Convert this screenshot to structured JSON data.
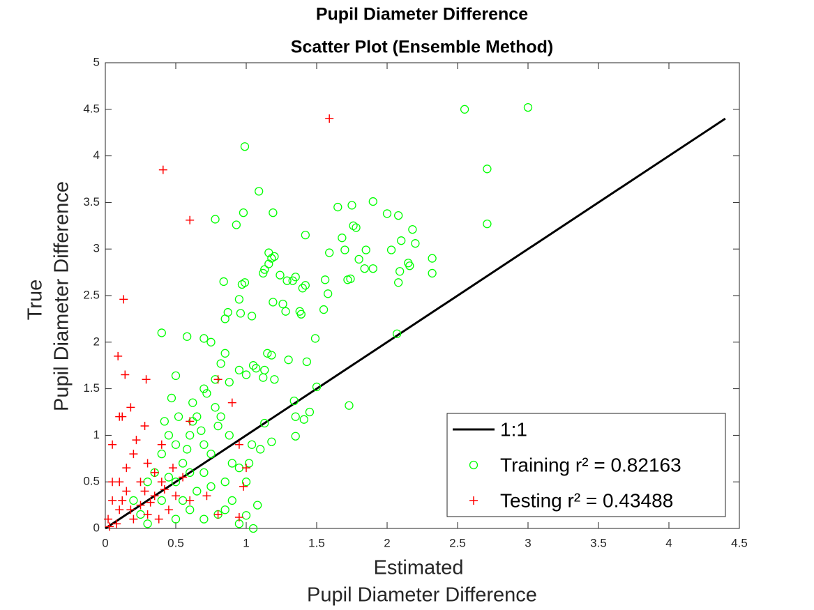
{
  "chart_data": {
    "type": "scatter",
    "title": [
      "Pupil Diameter Difference",
      "Scatter Plot (Ensemble Method)"
    ],
    "xlabel": [
      "Estimated",
      "Pupil Diameter Difference"
    ],
    "ylabel": [
      "True",
      "Pupil Diameter Difference"
    ],
    "xlim": [
      0,
      4.5
    ],
    "ylim": [
      0,
      5
    ],
    "xticks": [
      0,
      0.5,
      1,
      1.5,
      2,
      2.5,
      3,
      3.5,
      4,
      4.5
    ],
    "yticks": [
      0,
      0.5,
      1,
      1.5,
      2,
      2.5,
      3,
      3.5,
      4,
      4.5,
      5
    ],
    "grid": false,
    "legend": "lower right",
    "series": [
      {
        "name": "1:1",
        "type": "line",
        "color": "#000000",
        "x": [
          0,
          4.4
        ],
        "y": [
          0,
          4.4
        ]
      },
      {
        "name": "Training r² = 0.82163",
        "marker": "circle",
        "color": "#00ff00",
        "x": [
          2.55,
          3.0,
          0.99,
          2.71,
          1.09,
          2.71,
          1.19,
          0.98,
          0.78,
          0.93,
          1.9,
          1.75,
          1.65,
          2.0,
          2.08,
          2.18,
          1.76,
          1.78,
          1.42,
          1.68,
          2.2,
          2.1,
          1.85,
          1.7,
          1.59,
          2.03,
          1.16,
          1.18,
          1.2,
          1.16,
          1.8,
          2.15,
          2.16,
          2.32,
          1.84,
          1.9,
          1.13,
          1.12,
          1.24,
          1.35,
          1.33,
          1.29,
          1.42,
          1.4,
          1.56,
          1.74,
          1.72,
          2.09,
          2.08,
          2.32,
          0.99,
          0.97,
          0.84,
          1.58,
          0.95,
          1.19,
          1.26,
          0.87,
          1.38,
          1.39,
          1.28,
          1.55,
          0.85,
          0.96,
          1.04,
          0.4,
          0.58,
          0.7,
          2.07,
          1.49,
          0.75,
          0.85,
          1.15,
          1.18,
          1.3,
          1.43,
          0.82,
          1.05,
          1.07,
          0.95,
          1.13,
          0.5,
          1.0,
          1.12,
          1.2,
          0.78,
          0.88,
          1.5,
          0.7,
          1.34,
          1.73,
          0.47,
          0.62,
          1.45,
          1.35,
          1.41,
          1.13,
          1.35,
          1.18,
          1.04,
          1.1,
          1.02,
          0.95,
          1.0,
          1.08,
          1.05,
          0.95,
          1.0,
          0.6,
          0.7,
          0.65,
          0.8,
          0.75,
          0.55,
          0.5,
          0.4,
          0.45,
          0.6,
          0.7,
          0.35,
          0.3,
          0.5,
          0.4,
          0.55,
          0.6,
          0.7,
          0.8,
          0.5,
          0.65,
          0.85,
          0.9,
          0.75,
          0.2,
          0.25,
          0.45,
          0.58,
          0.68,
          0.78,
          0.72,
          0.62,
          0.82,
          0.88,
          0.52,
          0.42,
          0.9,
          0.85,
          0.3
        ],
        "y": [
          4.5,
          4.52,
          4.1,
          3.86,
          3.62,
          3.27,
          3.39,
          3.39,
          3.32,
          3.26,
          3.51,
          3.47,
          3.45,
          3.38,
          3.36,
          3.21,
          3.25,
          3.23,
          3.15,
          3.12,
          3.06,
          3.09,
          2.99,
          2.99,
          2.96,
          2.99,
          2.96,
          2.9,
          2.92,
          2.84,
          2.89,
          2.85,
          2.82,
          2.9,
          2.79,
          2.79,
          2.78,
          2.74,
          2.72,
          2.7,
          2.66,
          2.66,
          2.61,
          2.58,
          2.67,
          2.68,
          2.67,
          2.76,
          2.64,
          2.74,
          2.64,
          2.62,
          2.65,
          2.52,
          2.46,
          2.43,
          2.41,
          2.32,
          2.33,
          2.3,
          2.33,
          2.35,
          2.25,
          2.31,
          2.28,
          2.1,
          2.06,
          2.04,
          2.09,
          2.04,
          2.0,
          1.88,
          1.88,
          1.86,
          1.81,
          1.79,
          1.77,
          1.75,
          1.72,
          1.7,
          1.7,
          1.64,
          1.65,
          1.62,
          1.6,
          1.6,
          1.57,
          1.52,
          1.5,
          1.37,
          1.32,
          1.4,
          1.35,
          1.25,
          1.2,
          1.17,
          1.13,
          0.99,
          0.93,
          0.9,
          0.85,
          0.7,
          0.65,
          0.5,
          0.25,
          0.0,
          0.05,
          0.14,
          1.0,
          0.9,
          1.2,
          1.1,
          0.8,
          0.7,
          0.9,
          0.8,
          1.0,
          0.6,
          0.6,
          0.6,
          0.5,
          0.5,
          0.3,
          0.3,
          0.2,
          0.1,
          0.15,
          0.1,
          0.4,
          0.5,
          0.3,
          0.45,
          0.3,
          0.15,
          0.55,
          0.85,
          1.05,
          1.3,
          1.45,
          1.15,
          1.2,
          1.0,
          1.2,
          1.15,
          0.7,
          0.2,
          0.05
        ]
      },
      {
        "name": "Testing r² = 0.43488",
        "marker": "plus",
        "color": "#ff0000",
        "x": [
          1.59,
          0.41,
          0.6,
          0.13,
          0.14,
          0.09,
          0.29,
          0.1,
          0.12,
          0.28,
          0.18,
          0.05,
          0.8,
          0.9,
          0.6,
          0.95,
          1.0,
          0.98,
          0.95,
          0.8,
          0.72,
          0.55,
          0.4,
          0.3,
          0.2,
          0.1,
          0.05,
          0.02,
          0.15,
          0.25,
          0.35,
          0.3,
          0.2,
          0.1,
          0.4,
          0.45,
          0.5,
          0.35,
          0.25,
          0.15,
          0.08,
          0.05,
          0.22,
          0.48,
          0.6,
          0.38,
          0.28,
          0.18,
          0.12,
          0.42,
          0.32,
          0.03
        ],
        "y": [
          4.4,
          3.85,
          3.31,
          2.46,
          1.65,
          1.85,
          1.6,
          1.2,
          1.2,
          1.1,
          1.3,
          0.9,
          1.6,
          1.35,
          1.15,
          0.9,
          0.65,
          0.45,
          0.12,
          0.15,
          0.35,
          0.55,
          0.9,
          0.7,
          0.8,
          0.5,
          0.3,
          0.1,
          0.4,
          0.25,
          0.35,
          0.15,
          0.1,
          0.2,
          0.5,
          0.2,
          0.35,
          0.6,
          0.5,
          0.65,
          0.05,
          0.5,
          0.95,
          0.65,
          0.3,
          0.1,
          0.4,
          0.2,
          0.3,
          0.42,
          0.28,
          0.02
        ]
      }
    ]
  }
}
